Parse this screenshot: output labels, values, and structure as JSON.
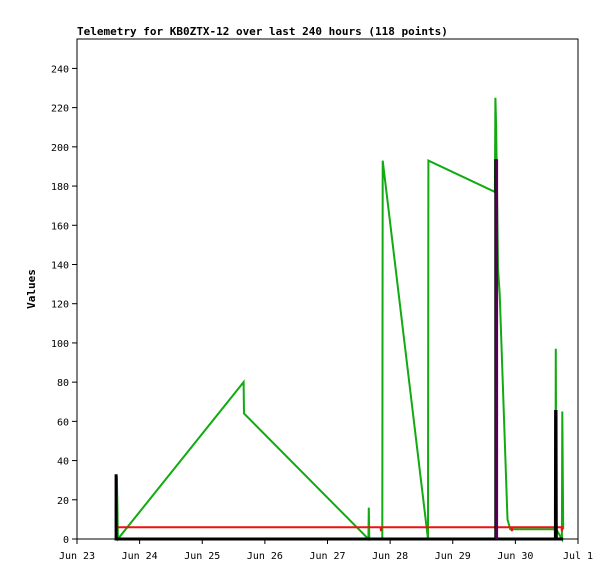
{
  "chart_data": {
    "type": "line",
    "title": "Telemetry for KB0ZTX-12 over last 240 hours (118 points)",
    "xlabel": "",
    "ylabel": "Values",
    "xlim": [
      "2023-06-23",
      "2023-07-01"
    ],
    "ylim": [
      0,
      255
    ],
    "x_ticks": [
      "Jun 23",
      "Jun 24",
      "Jun 25",
      "Jun 26",
      "Jun 27",
      "Jun 28",
      "Jun 29",
      "Jun 30",
      "Jul 1"
    ],
    "y_ticks": [
      0,
      20,
      40,
      60,
      80,
      100,
      120,
      140,
      160,
      180,
      200,
      220,
      240
    ],
    "grid": false,
    "legend": "none",
    "colors": {
      "green": "#11aa11",
      "red": "#ee1111",
      "black": "#000000",
      "purple": "#550055"
    },
    "series": [
      {
        "color": "#11aa11",
        "points": [
          [
            "2023-06-23 15:10",
            0
          ],
          [
            "2023-06-23 15:15",
            32
          ],
          [
            "2023-06-23 15:30",
            17
          ],
          [
            "2023-06-23 15:40",
            0
          ],
          [
            "2023-06-25 15:50",
            80
          ],
          [
            "2023-06-25 16:00",
            64
          ],
          [
            "2023-06-27 15:40",
            0
          ],
          [
            "2023-06-27 15:50",
            16
          ],
          [
            "2023-06-27 16:00",
            0
          ],
          [
            "2023-06-27 21:00",
            0
          ],
          [
            "2023-06-27 21:10",
            193
          ],
          [
            "2023-06-28 14:30",
            0
          ],
          [
            "2023-06-28 14:40",
            193
          ],
          [
            "2023-06-29 16:10",
            177
          ],
          [
            "2023-06-29 16:20",
            225
          ],
          [
            "2023-06-29 16:40",
            209
          ],
          [
            "2023-06-29 17:20",
            138
          ],
          [
            "2023-06-29 18:00",
            125
          ],
          [
            "2023-06-29 21:00",
            10
          ],
          [
            "2023-06-29 22:00",
            5
          ],
          [
            "2023-06-30 10:00",
            5
          ],
          [
            "2023-06-30 15:20",
            5
          ],
          [
            "2023-06-30 15:30",
            97
          ],
          [
            "2023-06-30 15:40",
            5
          ],
          [
            "2023-06-30 17:50",
            0
          ],
          [
            "2023-06-30 18:00",
            65
          ],
          [
            "2023-06-30 18:20",
            5
          ]
        ]
      },
      {
        "color": "#ee1111",
        "points": [
          [
            "2023-06-23 15:00",
            6
          ],
          [
            "2023-06-27 20:20",
            6
          ],
          [
            "2023-06-27 20:30",
            4
          ],
          [
            "2023-06-27 20:40",
            6
          ],
          [
            "2023-06-29 22:30",
            6
          ],
          [
            "2023-06-29 22:40",
            4
          ],
          [
            "2023-06-29 22:50",
            6
          ],
          [
            "2023-06-30 17:40",
            6
          ],
          [
            "2023-06-30 17:50",
            4
          ],
          [
            "2023-06-30 18:00",
            6
          ],
          [
            "2023-06-30 18:20",
            6
          ]
        ]
      },
      {
        "color": "#000000",
        "points": [
          [
            "2023-06-23 15:00",
            0
          ],
          [
            "2023-06-23 15:00",
            33
          ],
          [
            "2023-06-23 15:00",
            0
          ],
          [
            "2023-06-23 16:00",
            0
          ],
          [
            "2023-06-29 16:30",
            0
          ],
          [
            "2023-06-29 16:30",
            193
          ],
          [
            "2023-06-29 16:40",
            193
          ],
          [
            "2023-06-29 16:40",
            0
          ],
          [
            "2023-06-30 15:20",
            0
          ],
          [
            "2023-06-30 15:25",
            65
          ],
          [
            "2023-06-30 15:35",
            65
          ],
          [
            "2023-06-30 15:40",
            0
          ],
          [
            "2023-06-30 18:20",
            0
          ]
        ]
      },
      {
        "color": "#550055",
        "points": [
          [
            "2023-06-29 16:40",
            0
          ],
          [
            "2023-06-29 16:40",
            193
          ],
          [
            "2023-06-29 17:00",
            193
          ],
          [
            "2023-06-29 17:00",
            0
          ]
        ]
      }
    ]
  }
}
